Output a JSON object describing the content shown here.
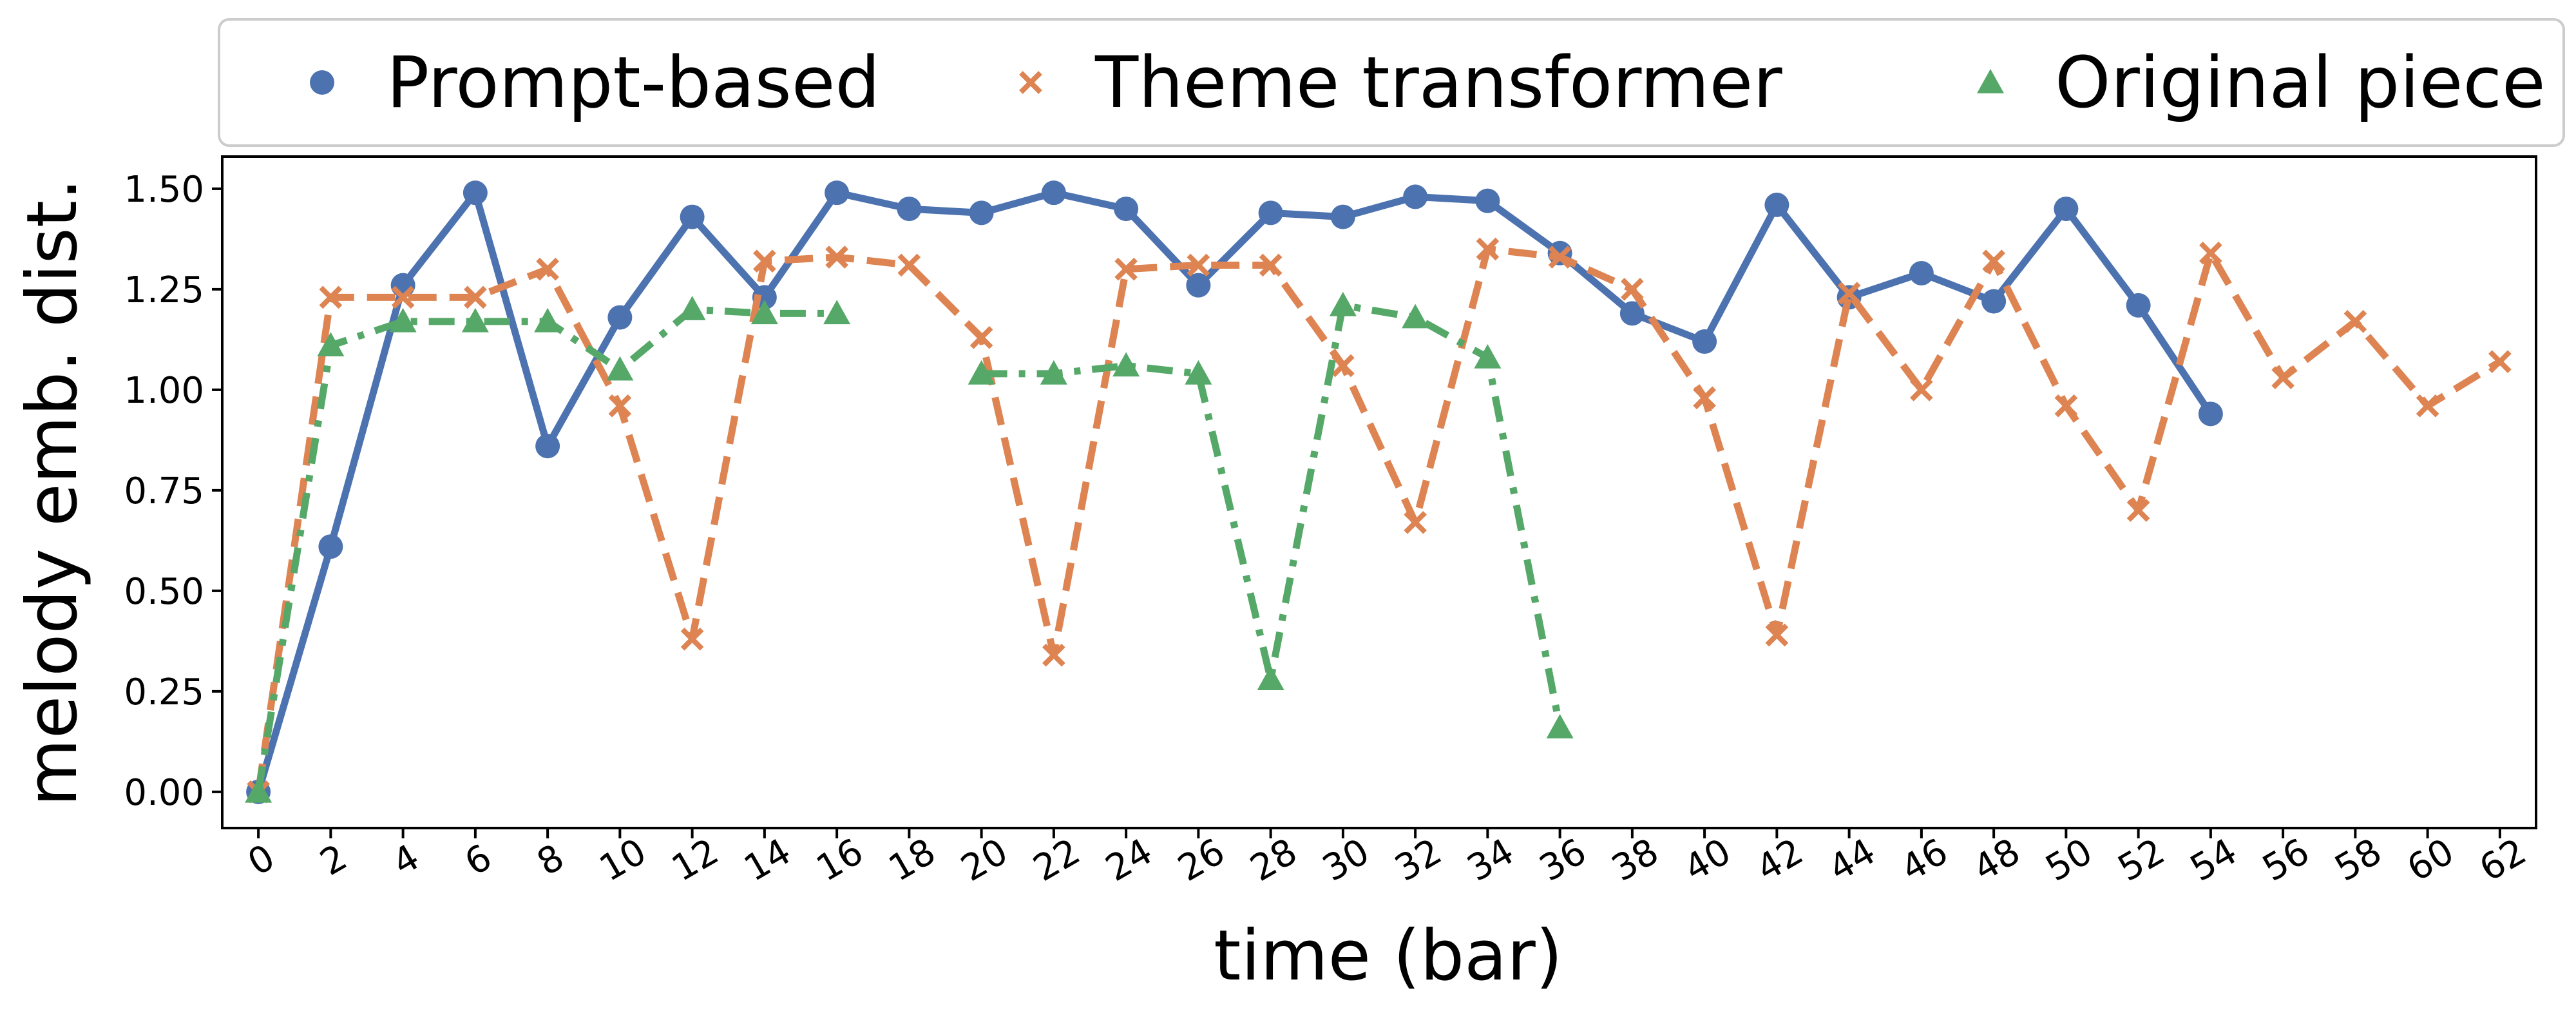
{
  "chart_data": {
    "type": "line",
    "xlabel": "time (bar)",
    "ylabel": "melody emb. dist.",
    "xlim": [
      -1,
      63
    ],
    "ylim": [
      -0.09,
      1.58
    ],
    "xticks": [
      0,
      2,
      4,
      6,
      8,
      10,
      12,
      14,
      16,
      18,
      20,
      22,
      24,
      26,
      28,
      30,
      32,
      34,
      36,
      38,
      40,
      42,
      44,
      46,
      48,
      50,
      52,
      54,
      56,
      58,
      60,
      62
    ],
    "yticks": [
      "0.00",
      "0.25",
      "0.50",
      "0.75",
      "1.00",
      "1.25",
      "1.50"
    ],
    "grid": false,
    "legend_position": "top",
    "series": [
      {
        "name": "Prompt-based",
        "color": "#4c72b0",
        "marker": "circle",
        "linestyle": "solid",
        "x": [
          0,
          2,
          4,
          6,
          8,
          10,
          12,
          14,
          16,
          18,
          20,
          22,
          24,
          26,
          28,
          30,
          32,
          34,
          36,
          38,
          40,
          42,
          44,
          46,
          48,
          50,
          52,
          54
        ],
        "y": [
          0.0,
          0.61,
          1.26,
          1.49,
          0.86,
          1.18,
          1.43,
          1.23,
          1.49,
          1.45,
          1.44,
          1.49,
          1.45,
          1.26,
          1.44,
          1.43,
          1.48,
          1.47,
          1.34,
          1.19,
          1.12,
          1.46,
          1.23,
          1.29,
          1.22,
          1.45,
          1.21,
          0.94
        ]
      },
      {
        "name": "Theme transformer",
        "color": "#dd8452",
        "marker": "x",
        "linestyle": "dashed",
        "x": [
          0,
          2,
          4,
          6,
          8,
          10,
          12,
          14,
          16,
          18,
          20,
          22,
          24,
          26,
          28,
          30,
          32,
          34,
          36,
          38,
          40,
          42,
          44,
          46,
          48,
          50,
          52,
          54,
          56,
          58,
          60,
          62
        ],
        "y": [
          0.0,
          1.23,
          1.23,
          1.23,
          1.3,
          0.96,
          0.38,
          1.32,
          1.33,
          1.31,
          1.13,
          0.34,
          1.3,
          1.31,
          1.31,
          1.06,
          0.67,
          1.35,
          1.33,
          1.25,
          0.98,
          0.39,
          1.24,
          1.0,
          1.32,
          0.96,
          0.7,
          1.34,
          1.03,
          1.17,
          0.96,
          1.07
        ]
      },
      {
        "name": "Original piece",
        "color": "#55a868",
        "marker": "triangle",
        "linestyle": "dashdot",
        "segments": [
          {
            "x": [
              0,
              2,
              4,
              6,
              8,
              10,
              12,
              14,
              16
            ],
            "y": [
              0.0,
              1.11,
              1.17,
              1.17,
              1.17,
              1.05,
              1.2,
              1.19,
              1.19
            ]
          },
          {
            "x": [
              20,
              22,
              24,
              26,
              28,
              30,
              32,
              34,
              36
            ],
            "y": [
              1.04,
              1.04,
              1.06,
              1.04,
              0.28,
              1.21,
              1.18,
              1.08,
              0.16
            ]
          }
        ]
      }
    ]
  }
}
